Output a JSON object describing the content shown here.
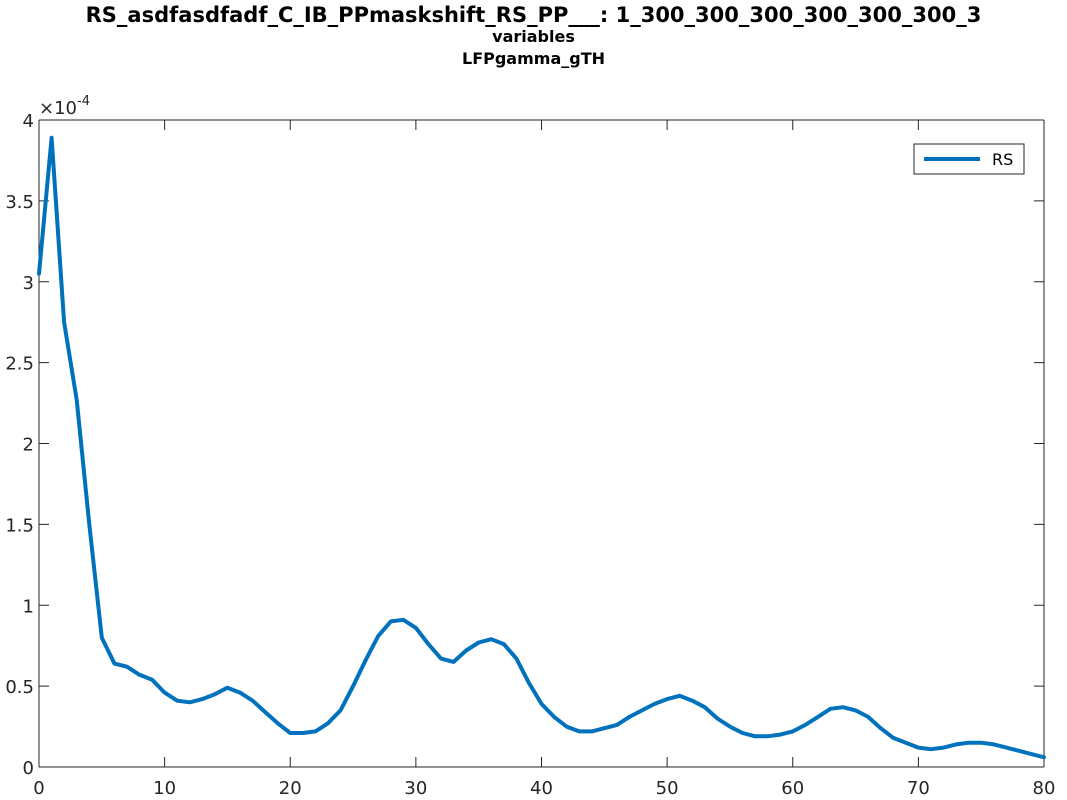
{
  "title": {
    "line1": "RS_asdfasdfadf_C_IB_PPmaskshift_RS_PP___: 1_300_300_300_300_300_300_3",
    "line2": "variables",
    "line3": "LFPgamma_gTH"
  },
  "chart_data": {
    "type": "line",
    "title": "RS_asdfasdfadf_C_IB_PPmaskshift_RS_PP___: 1_300_300_300_300_300_300_3",
    "subtitle": [
      "variables",
      "LFPgamma_gTH"
    ],
    "xlabel": "",
    "ylabel": "",
    "xlim": [
      0,
      80
    ],
    "ylim": [
      0,
      0.0004
    ],
    "xticks": [
      0,
      10,
      20,
      30,
      40,
      50,
      60,
      70,
      80
    ],
    "yticks": [
      0,
      0.5,
      1,
      1.5,
      2,
      2.5,
      3,
      3.5,
      4
    ],
    "ytick_labels": [
      "0",
      "0.5",
      "1",
      "1.5",
      "2",
      "2.5",
      "3",
      "3.5",
      "4"
    ],
    "y_exponent_label": "×10",
    "y_exponent": "-4",
    "grid": false,
    "legend": {
      "position": "top-right",
      "entries": [
        "RS"
      ]
    },
    "series": [
      {
        "name": "RS",
        "color": "#0072BD",
        "x": [
          0,
          1,
          2,
          3,
          4,
          5,
          6,
          7,
          8,
          9,
          10,
          11,
          12,
          13,
          14,
          15,
          16,
          17,
          18,
          19,
          20,
          21,
          22,
          23,
          24,
          25,
          26,
          27,
          28,
          29,
          30,
          31,
          32,
          33,
          34,
          35,
          36,
          37,
          38,
          39,
          40,
          41,
          42,
          43,
          44,
          45,
          46,
          47,
          48,
          49,
          50,
          51,
          52,
          53,
          54,
          55,
          56,
          57,
          58,
          59,
          60,
          61,
          62,
          63,
          64,
          65,
          66,
          67,
          68,
          69,
          70,
          71,
          72,
          73,
          74,
          75,
          76,
          77,
          78,
          79,
          80
        ],
        "y": [
          0.000305,
          0.000389,
          0.000275,
          0.000227,
          0.00015,
          8e-05,
          6.4e-05,
          6.2e-05,
          5.7e-05,
          5.4e-05,
          4.6e-05,
          4.1e-05,
          4e-05,
          4.2e-05,
          4.5e-05,
          4.9e-05,
          4.6e-05,
          4.1e-05,
          3.4e-05,
          2.7e-05,
          2.1e-05,
          2.1e-05,
          2.2e-05,
          2.7e-05,
          3.5e-05,
          5e-05,
          6.6e-05,
          8.1e-05,
          9e-05,
          9.1e-05,
          8.6e-05,
          7.6e-05,
          6.7e-05,
          6.5e-05,
          7.2e-05,
          7.7e-05,
          7.9e-05,
          7.6e-05,
          6.7e-05,
          5.2e-05,
          3.9e-05,
          3.1e-05,
          2.5e-05,
          2.2e-05,
          2.2e-05,
          2.4e-05,
          2.6e-05,
          3.1e-05,
          3.5e-05,
          3.9e-05,
          4.2e-05,
          4.4e-05,
          4.1e-05,
          3.7e-05,
          3e-05,
          2.5e-05,
          2.1e-05,
          1.9e-05,
          1.9e-05,
          2e-05,
          2.2e-05,
          2.6e-05,
          3.1e-05,
          3.6e-05,
          3.7e-05,
          3.5e-05,
          3.1e-05,
          2.4e-05,
          1.8e-05,
          1.5e-05,
          1.2e-05,
          1.1e-05,
          1.2e-05,
          1.4e-05,
          1.5e-05,
          1.5e-05,
          1.4e-05,
          1.2e-05,
          1e-05,
          8e-06,
          6e-06
        ]
      }
    ]
  }
}
